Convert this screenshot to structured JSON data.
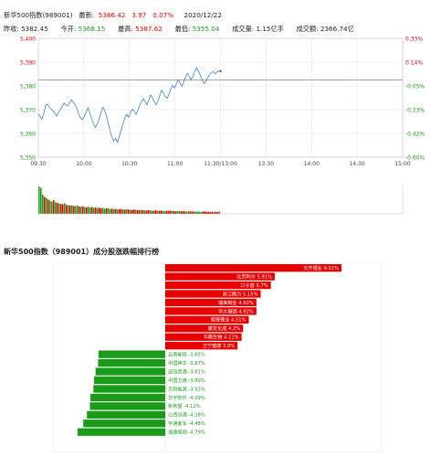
{
  "header": {
    "name_code": "新华500指数(989001)",
    "latest_label": "最新:",
    "latest_value": "5386.42",
    "change": "3.97",
    "change_pct": "0.07%",
    "date": "2020/12/22",
    "prev_close_label": "昨收:",
    "prev_close_value": "5382.45",
    "open_label": "今开:",
    "open_value": "5368.15",
    "high_label": "最高:",
    "high_value": "5387.62",
    "low_label": "最低:",
    "low_value": "5355.04",
    "volume_label": "成交量:",
    "volume_value": "1.15亿手",
    "amount_label": "成交额:",
    "amount_value": "2366.74亿"
  },
  "colors": {
    "up": "#e60000",
    "down": "#1a9b1a",
    "line": "#3d7fd1",
    "grid": "#e0e0e0"
  },
  "chart_data": [
    {
      "type": "line",
      "ylim": [
        5350,
        5400
      ],
      "y_ticks": [
        "5,400",
        "5,390",
        "5,380",
        "5,370",
        "5,360",
        "5,350"
      ],
      "y_tick_values": [
        5400,
        5390,
        5380,
        5370,
        5360,
        5350
      ],
      "right_ticks": [
        "0.33%",
        "0.14%",
        "-0.05%",
        "-0.23%",
        "-0.42%",
        "-0.60%"
      ],
      "x_ticks": [
        "09:30",
        "10:00",
        "10:30",
        "11:00",
        "11:30/13:00",
        "13:30",
        "14:00",
        "14:30",
        "15:00"
      ],
      "reference_value": 5382.45,
      "series": [
        {
          "values": [
            5368.2,
            5367.1,
            5366.0,
            5368.5,
            5371.9,
            5372.4,
            5371.0,
            5370.2,
            5369.5,
            5368.4,
            5367.3,
            5368.9,
            5370.1,
            5371.4,
            5372.8,
            5372.0,
            5371.5,
            5373.0,
            5374.2,
            5373.1,
            5372.0,
            5370.4,
            5368.0,
            5366.5,
            5365.8,
            5367.2,
            5369.0,
            5370.8,
            5368.6,
            5366.2,
            5364.0,
            5362.5,
            5363.8,
            5366.0,
            5368.5,
            5371.0,
            5369.8,
            5367.5,
            5364.2,
            5361.0,
            5358.5,
            5356.8,
            5357.9,
            5356.2,
            5358.8,
            5361.5,
            5364.0,
            5366.4,
            5368.0,
            5366.8,
            5368.5,
            5370.2,
            5369.6,
            5368.1,
            5369.4,
            5371.8,
            5373.2,
            5374.6,
            5373.5,
            5372.0,
            5374.0,
            5376.2,
            5375.0,
            5373.4,
            5372.1,
            5373.7,
            5376.0,
            5378.2,
            5377.0,
            5375.4,
            5374.8,
            5376.6,
            5378.6,
            5380.2,
            5379.1,
            5380.8,
            5382.6,
            5381.4,
            5379.8,
            5381.6,
            5383.8,
            5385.3,
            5384.0,
            5382.6,
            5383.9,
            5386.0,
            5387.6,
            5386.2,
            5384.5,
            5382.8,
            5381.0,
            5381.9,
            5383.4,
            5384.7,
            5385.6,
            5386.0,
            5385.1,
            5385.8,
            5386.4,
            5386.2
          ]
        }
      ],
      "volume_values": [
        100,
        95,
        70,
        62,
        58,
        52,
        48,
        45,
        50,
        42,
        40,
        38,
        36,
        35,
        39,
        33,
        32,
        30,
        31,
        29,
        28,
        30,
        27,
        26,
        28,
        25,
        24,
        26,
        23,
        25,
        22,
        24,
        21,
        23,
        20,
        22,
        19,
        21,
        20,
        18,
        19,
        17,
        18,
        16,
        17,
        18,
        16,
        15,
        17,
        16,
        15,
        14,
        16,
        15,
        14,
        13,
        15,
        14,
        13,
        12,
        14,
        13,
        12,
        11,
        13,
        12,
        11,
        12,
        11,
        10,
        11,
        10,
        12,
        11,
        10,
        9,
        11,
        10,
        9,
        10,
        9,
        8,
        10,
        9,
        8,
        9,
        8,
        9,
        8,
        7,
        8,
        9,
        7,
        8,
        7,
        8,
        7,
        8,
        7,
        9
      ],
      "volume_colors": [
        "d",
        "d",
        "d",
        "u",
        "d",
        "u",
        "d",
        "d",
        "u",
        "d",
        "u",
        "d",
        "u",
        "u",
        "d",
        "u",
        "d",
        "u",
        "d",
        "u",
        "d",
        "d",
        "u",
        "d",
        "u",
        "d",
        "u",
        "d",
        "d",
        "u",
        "d",
        "u",
        "d",
        "u",
        "u",
        "d",
        "d",
        "u",
        "d",
        "d",
        "u",
        "d",
        "u",
        "d",
        "u",
        "u",
        "d",
        "u",
        "d",
        "u",
        "d",
        "u",
        "u",
        "d",
        "u",
        "u",
        "d",
        "u",
        "d",
        "u",
        "u",
        "d",
        "d",
        "u",
        "u",
        "d",
        "u",
        "u",
        "d",
        "d",
        "u",
        "u",
        "u",
        "d",
        "u",
        "u",
        "d",
        "d",
        "u",
        "u",
        "u",
        "d",
        "d",
        "u",
        "u",
        "u",
        "d",
        "d",
        "d",
        "d",
        "u",
        "u",
        "u",
        "u",
        "u",
        "u",
        "d",
        "u",
        "u",
        "d"
      ]
    },
    {
      "type": "bar",
      "title": "新华500指数（989001）成分股涨跌幅排行榜",
      "categories": [
        "天齐锂业",
        "北京利尔",
        "口子窖",
        "浙江鼎力",
        "瑞美制业",
        "华大基因",
        "赣锋锂业",
        "康龙化成",
        "华鼎生物",
        "卫宁健康",
        "云南能投",
        "中国神华",
        "迎驾贡酒",
        "中国卫通",
        "贝刻能源",
        "华宇软件",
        "新希望",
        "山西汾酒",
        "宇通客车",
        "海康威视"
      ],
      "labels": [
        "天齐锂业 9.51%",
        "北京利尔 5.91%",
        "口子窖 5.7%",
        "浙江鼎力 5.15%",
        "瑞美制业 4.92%",
        "华大基因 4.92%",
        "赣锋锂业 4.51%",
        "康龙化成 4.2%",
        "华鼎生物 4.12%",
        "卫宁健康 3.9%",
        "云南能投 -3.65%",
        "中国神华 -3.67%",
        "迎驾贡酒 -3.81%",
        "中国卫通 -3.89%",
        "贝刻能源 -3.93%",
        "华宇软件 -4.09%",
        "新希望 -4.12%",
        "山西汾酒 -4.28%",
        "宇通客车 -4.48%",
        "海康威视 -4.79%"
      ],
      "values": [
        9.51,
        5.91,
        5.7,
        5.15,
        4.92,
        4.92,
        4.51,
        4.2,
        4.12,
        3.9,
        -3.65,
        -3.67,
        -3.81,
        -3.89,
        -3.93,
        -4.09,
        -4.12,
        -4.28,
        -4.48,
        -4.79
      ]
    }
  ],
  "ranking": {
    "title": "新华500指数（989001）成分股涨跌幅排行榜"
  }
}
